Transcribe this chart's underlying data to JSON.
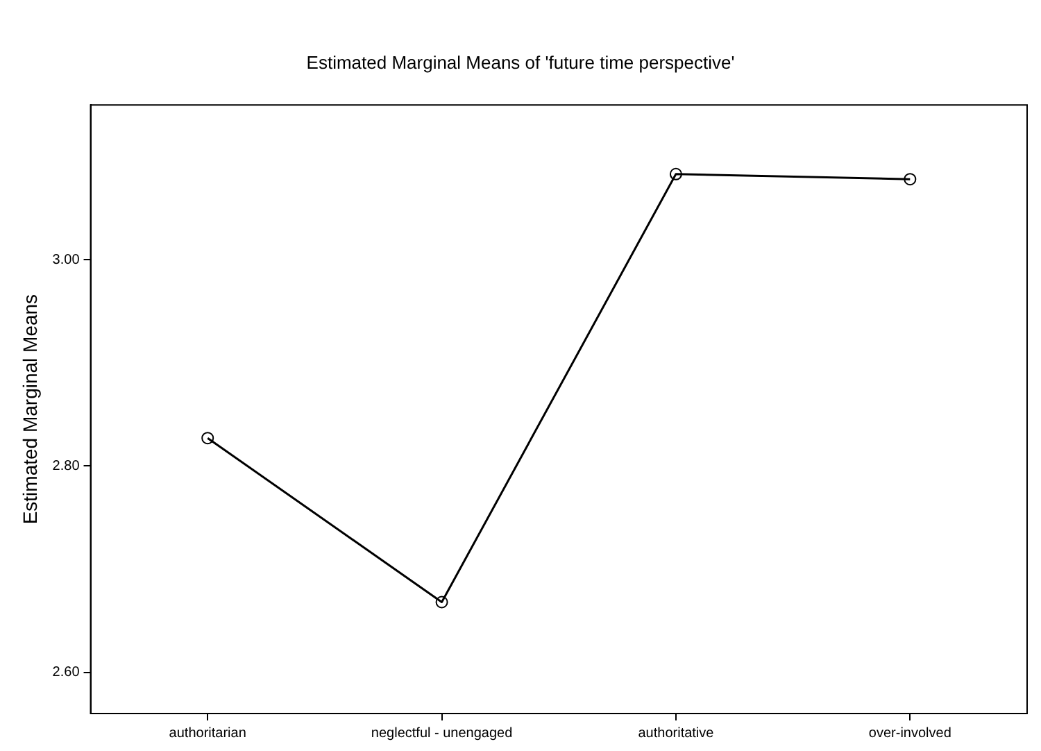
{
  "chart_data": {
    "type": "line",
    "title": "Estimated Marginal Means of 'future time perspective'",
    "ylabel": "Estimated Marginal Means",
    "categories": [
      "authoritarian",
      "neglectful - unengaged",
      "authoritative",
      "over-involved"
    ],
    "series": [
      {
        "color": "#000000",
        "values": [
          2.827,
          2.668,
          3.083,
          3.078
        ]
      }
    ],
    "ylim": [
      2.56,
      3.15
    ],
    "yticks": [
      {
        "value": 2.6,
        "label": "2.60"
      },
      {
        "value": 2.8,
        "label": "2.80"
      },
      {
        "value": 3.0,
        "label": "3.00"
      }
    ],
    "grid": false,
    "legend": false,
    "marker": "circle",
    "line_style": "solid"
  }
}
